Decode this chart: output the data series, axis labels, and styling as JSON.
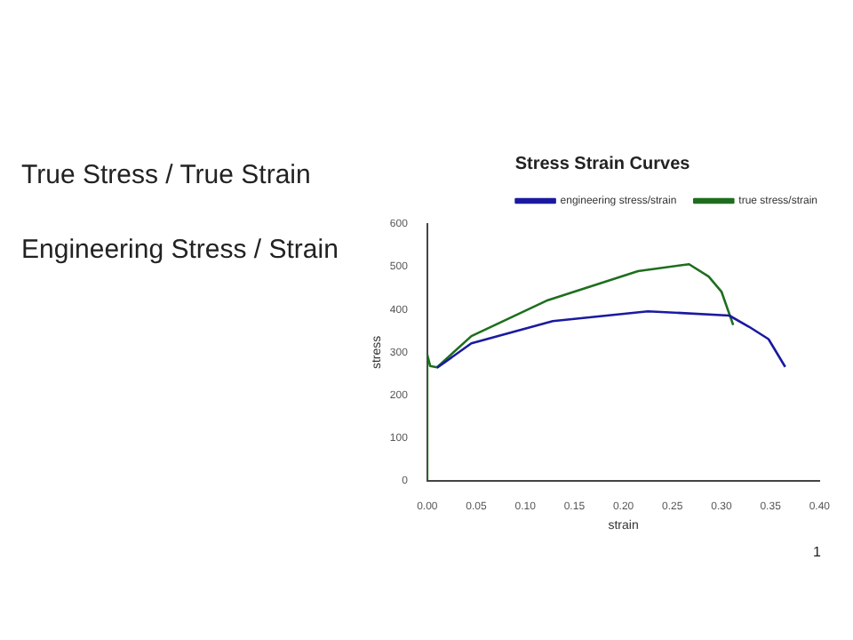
{
  "chart_data": {
    "type": "line",
    "title": "Stress Strain Curves",
    "xlabel": "strain",
    "ylabel": "stress",
    "annotations": [
      "True Stress / True Strain",
      "Engineering Stress / Strain",
      "1"
    ],
    "series": [
      {
        "name": "engineering stress/strain",
        "color": "#1a1aa0",
        "x": [
          0.01,
          0.045,
          0.128,
          0.225,
          0.308,
          0.328,
          0.348,
          0.365
        ],
        "values": [
          264,
          321,
          373,
          396,
          386,
          360,
          331,
          266
        ]
      },
      {
        "name": "true stress/strain",
        "color": "#1e6e1e",
        "x": [
          0,
          0,
          0.003,
          0.01,
          0.045,
          0.123,
          0.215,
          0.267,
          0.287,
          0.3,
          0.312
        ],
        "values": [
          0,
          295,
          268,
          265,
          338,
          422,
          490,
          506,
          477,
          442,
          364
        ]
      }
    ],
    "xlim": [
      0,
      0.4
    ],
    "xticks": [
      {
        "value": 0,
        "label": "0.00"
      },
      {
        "value": 0.05,
        "label": "0.05"
      },
      {
        "value": 0.1,
        "label": "0.10"
      },
      {
        "value": 0.15,
        "label": "0.15"
      },
      {
        "value": 0.2,
        "label": "0.20"
      },
      {
        "value": 0.25,
        "label": "0.25"
      },
      {
        "value": 0.3,
        "label": "0.30"
      },
      {
        "value": 0.35,
        "label": "0.35"
      },
      {
        "value": 0.4,
        "label": "0.40"
      }
    ],
    "ylim": [
      0,
      600
    ],
    "yticks": [
      0,
      100,
      200,
      300,
      400,
      500,
      600
    ],
    "grid": false,
    "legend": "top right",
    "line_style": "solid",
    "marker": "none"
  }
}
